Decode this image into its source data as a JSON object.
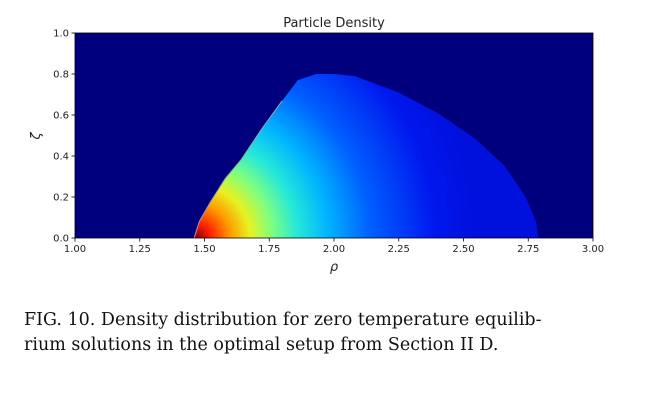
{
  "chart_data": {
    "type": "heatmap",
    "title": "Particle Density",
    "xlabel": "ρ",
    "ylabel": "ζ",
    "xlim": [
      1.0,
      3.0
    ],
    "ylim": [
      0.0,
      1.0
    ],
    "x_ticks": [
      "1.00",
      "1.25",
      "1.50",
      "1.75",
      "2.00",
      "2.25",
      "2.50",
      "2.75",
      "3.00"
    ],
    "y_ticks": [
      "0.0",
      "0.2",
      "0.4",
      "0.6",
      "0.8",
      "1.0"
    ],
    "background_color": "#00007f",
    "colormap": "jet",
    "peak": {
      "rho": 1.47,
      "zeta": 0.0
    },
    "boundary": [
      {
        "rho": 1.46,
        "zeta": 0.0
      },
      {
        "rho": 1.48,
        "zeta": 0.08
      },
      {
        "rho": 1.52,
        "zeta": 0.17
      },
      {
        "rho": 1.58,
        "zeta": 0.29
      },
      {
        "rho": 1.64,
        "zeta": 0.38
      },
      {
        "rho": 1.72,
        "zeta": 0.53
      },
      {
        "rho": 1.8,
        "zeta": 0.67
      },
      {
        "rho": 1.86,
        "zeta": 0.77
      },
      {
        "rho": 1.93,
        "zeta": 0.8
      },
      {
        "rho": 2.0,
        "zeta": 0.8
      },
      {
        "rho": 2.08,
        "zeta": 0.79
      },
      {
        "rho": 2.25,
        "zeta": 0.71
      },
      {
        "rho": 2.4,
        "zeta": 0.61
      },
      {
        "rho": 2.55,
        "zeta": 0.48
      },
      {
        "rho": 2.66,
        "zeta": 0.35
      },
      {
        "rho": 2.74,
        "zeta": 0.2
      },
      {
        "rho": 2.78,
        "zeta": 0.08
      },
      {
        "rho": 2.79,
        "zeta": 0.0
      }
    ]
  },
  "caption": {
    "line1": "FIG. 10.  Density distribution for zero temperature equilib-",
    "line2": "rium solutions in the optimal setup from Section II D."
  }
}
